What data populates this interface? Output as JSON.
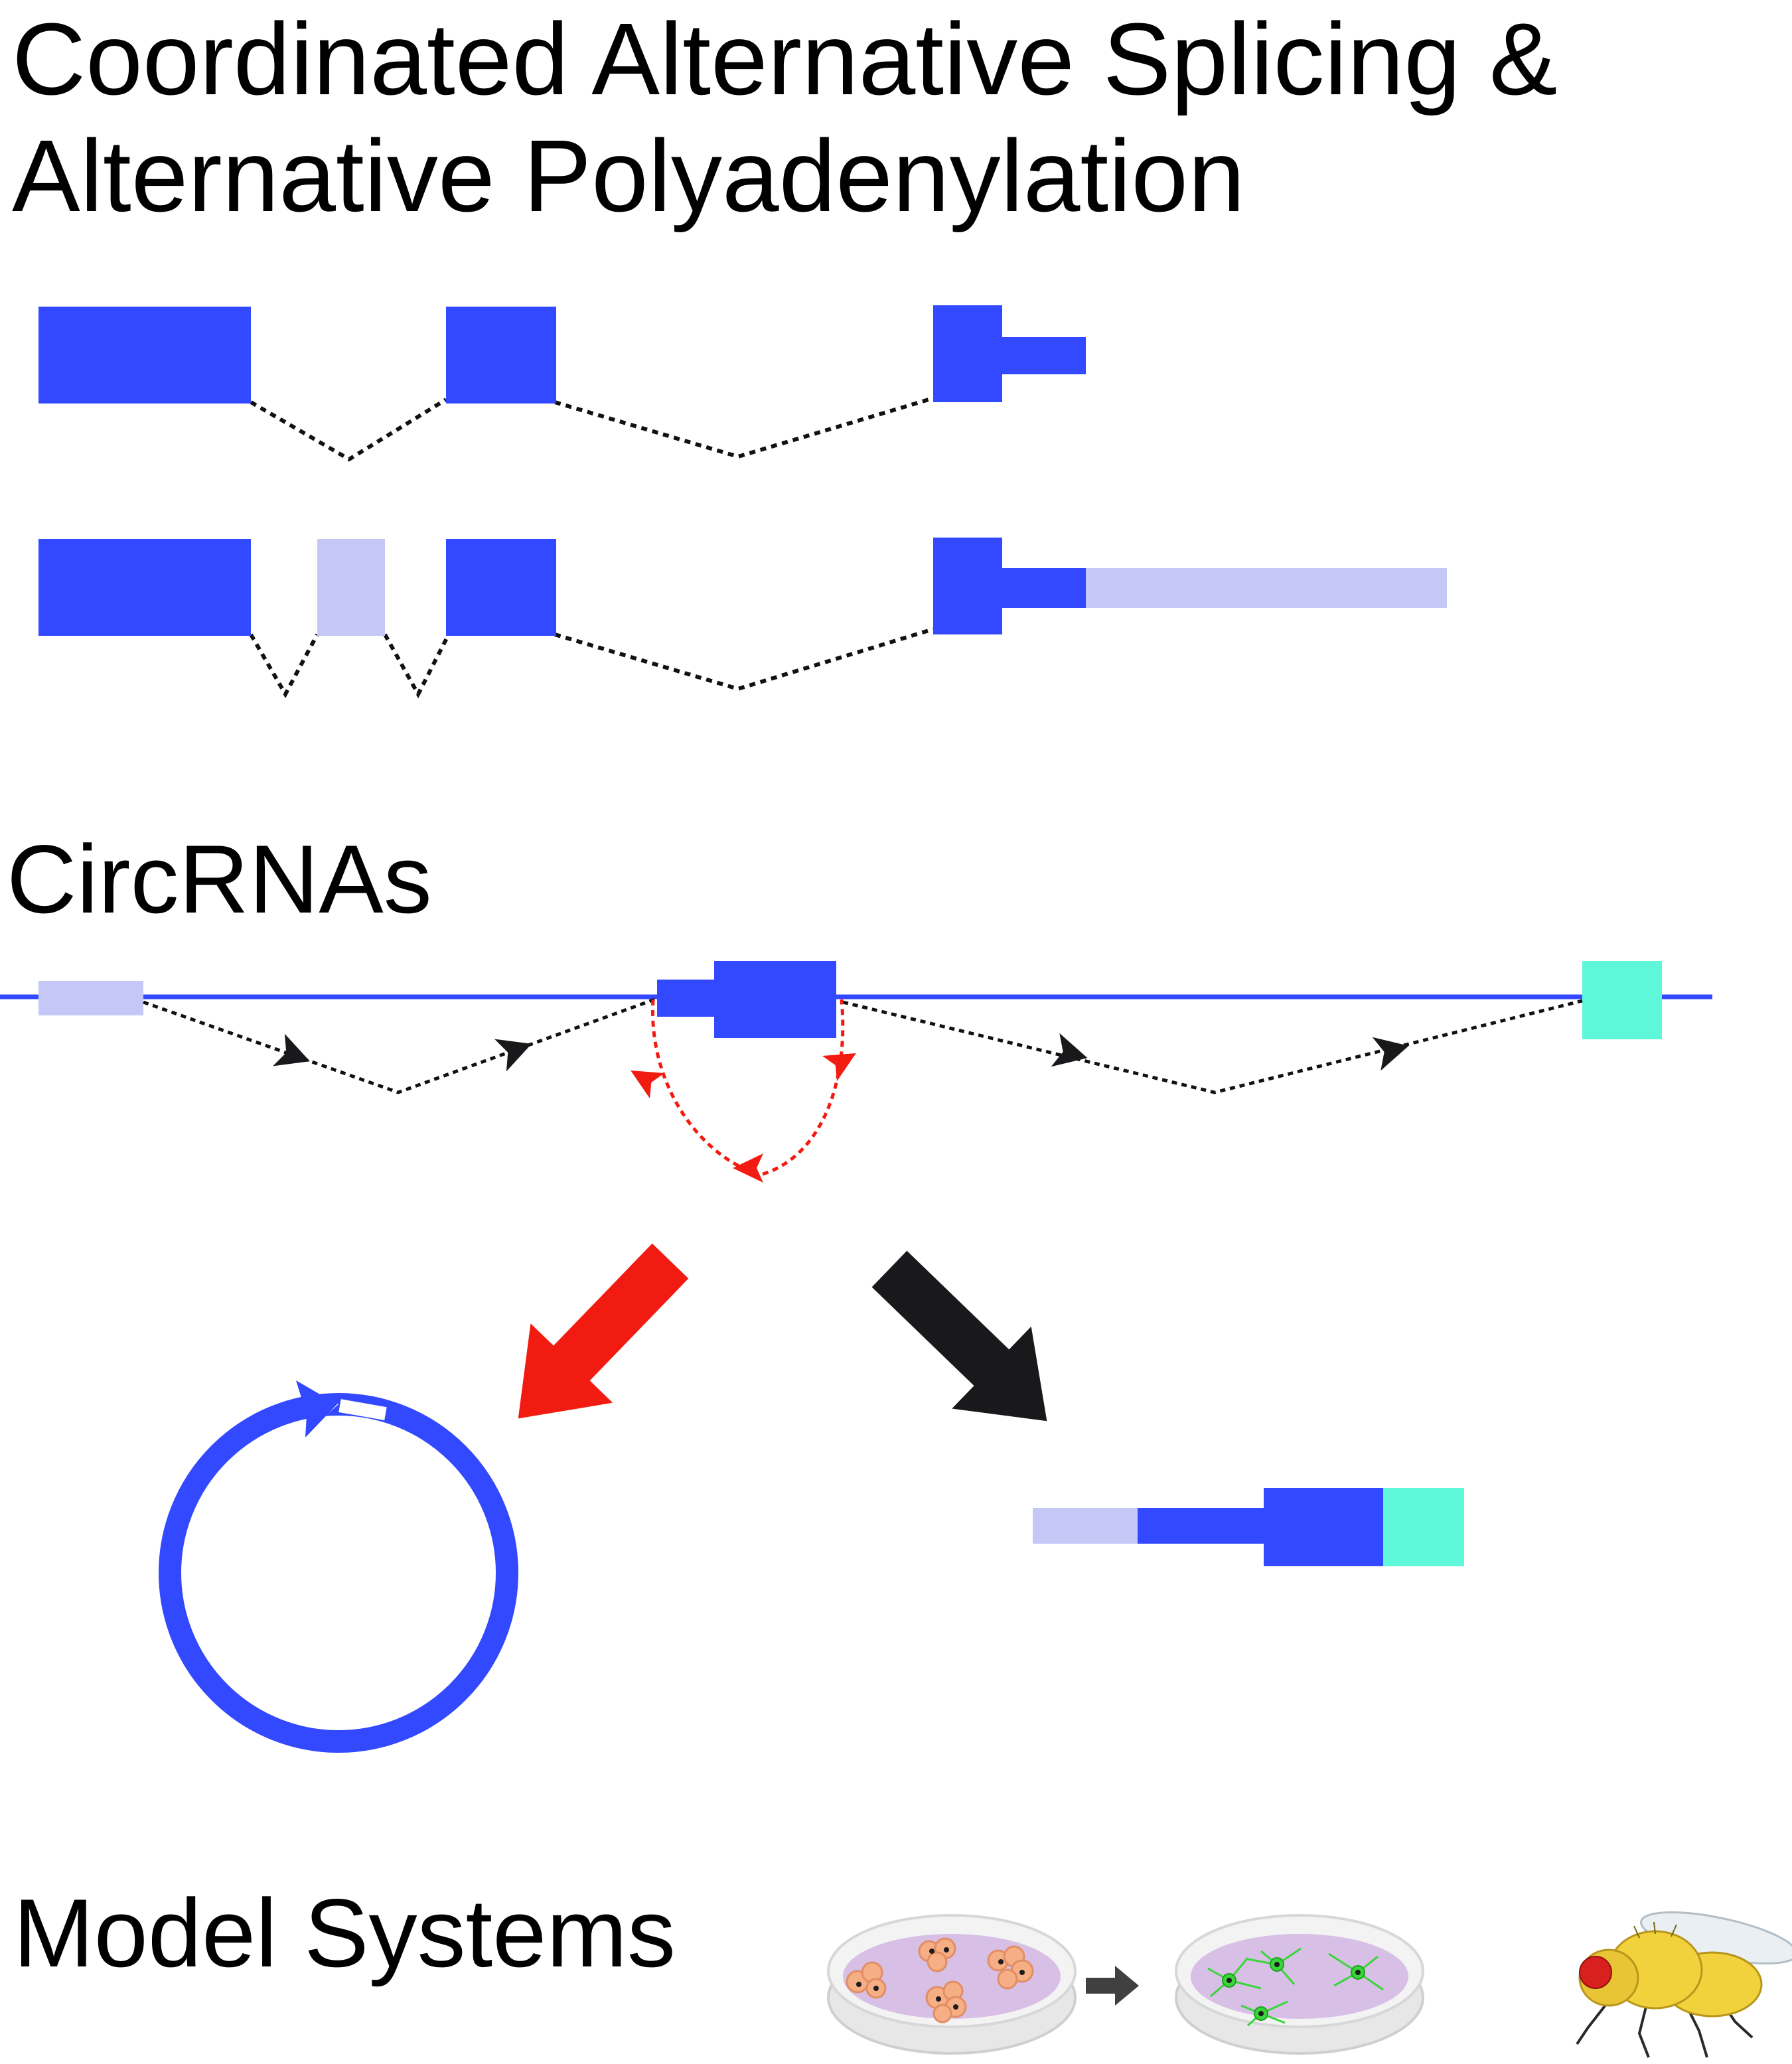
{
  "sections": {
    "splicing_apa": {
      "title_line_1": "Coordinated Alternative Splicing &",
      "title_line_2": "Alternative Polyadenylation"
    },
    "circrnas": {
      "title": "CircRNAs"
    },
    "model_systems": {
      "title": "Model Systems"
    }
  },
  "colors": {
    "exon_blue": "#3349FF",
    "exon_light": "#C5C8F7",
    "exon_teal": "#5EF7D9",
    "backsplice_red": "#F21B12",
    "arrow_black": "#19191C",
    "intron_line": "#111111",
    "dish_purple": "#D8BFE6",
    "cell_orange": "#F6AE85",
    "neuron_green": "#39D63A",
    "fly_yellow": "#F2D23C",
    "fly_eye": "#D8201E"
  },
  "icons": [
    "petri-dish-cells-icon",
    "right-arrow-icon",
    "petri-dish-neurons-icon",
    "fruit-fly-icon"
  ]
}
